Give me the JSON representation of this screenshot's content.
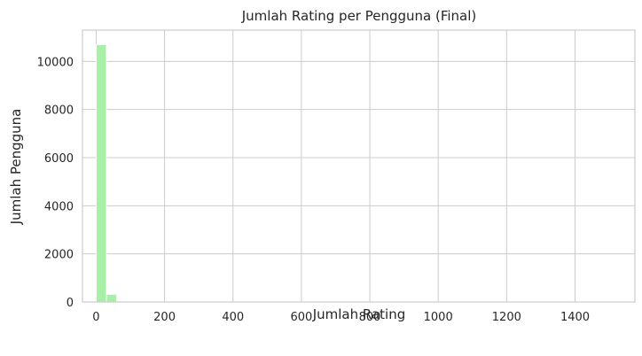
{
  "chart_data": {
    "type": "bar",
    "title": "Jumlah Rating per Pengguna (Final)",
    "xlabel": "Jumlah Rating",
    "ylabel": "Jumlah Pengguna",
    "xlim": [
      -40,
      1575
    ],
    "ylim": [
      0,
      11300
    ],
    "x_ticks": [
      0,
      200,
      400,
      600,
      800,
      1000,
      1200,
      1400
    ],
    "y_ticks": [
      0,
      2000,
      4000,
      6000,
      8000,
      10000
    ],
    "grid": true,
    "bar_color": "#a8f0a8",
    "bins": [
      {
        "x0": 0,
        "x1": 30,
        "count": 10700
      },
      {
        "x0": 30,
        "x1": 60,
        "count": 320
      },
      {
        "x0": 60,
        "x1": 90,
        "count": 40
      },
      {
        "x0": 90,
        "x1": 120,
        "count": 12
      },
      {
        "x0": 120,
        "x1": 150,
        "count": 5
      },
      {
        "x0": 150,
        "x1": 180,
        "count": 3
      },
      {
        "x0": 180,
        "x1": 210,
        "count": 2
      },
      {
        "x0": 210,
        "x1": 240,
        "count": 1
      },
      {
        "x0": 240,
        "x1": 270,
        "count": 1
      },
      {
        "x0": 300,
        "x1": 330,
        "count": 1
      },
      {
        "x0": 1470,
        "x1": 1500,
        "count": 1
      }
    ]
  }
}
